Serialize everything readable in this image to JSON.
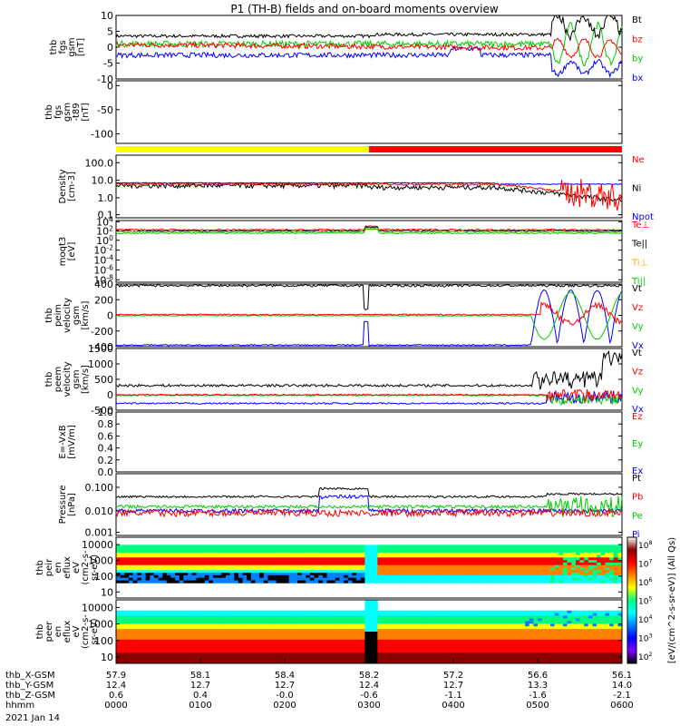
{
  "title": "P1 (TH-B) fields and on-board moments overview",
  "date_label": "2021 Jan 14",
  "colorbar": {
    "label": "[eV/(cm^2-s-sr-eV)] (All Qs)",
    "ticks": [
      "10^8",
      "10^7",
      "10^6",
      "10^5",
      "10^4",
      "10^3",
      "10^2"
    ],
    "colors": [
      "#ffffff",
      "#8b0000",
      "#ff0000",
      "#ff7f00",
      "#ffff00",
      "#00ff7f",
      "#00ffff",
      "#007fff",
      "#0000ff",
      "#7f00ff",
      "#000000"
    ]
  },
  "chart_data": [
    {
      "type": "line",
      "panel": "fgs-gsm",
      "ylabel": [
        "thb",
        "fgs",
        "gsm",
        "[nT]"
      ],
      "ylim": [
        -10,
        10
      ],
      "ticks": [
        "10",
        "5",
        "0",
        "-5",
        "-10"
      ],
      "series": [
        {
          "name": "Bt",
          "color": "#000000"
        },
        {
          "name": "bz",
          "color": "#ff0000"
        },
        {
          "name": "by",
          "color": "#00cc00"
        },
        {
          "name": "bx",
          "color": "#0000ff"
        }
      ]
    },
    {
      "type": "line",
      "panel": "fgs-gsm-t89",
      "ylabel": [
        "thb",
        "fgs",
        "gsm",
        "-t89",
        "[nT]"
      ],
      "ylim": [
        -120,
        10
      ],
      "ticks": [
        "0",
        "-50",
        "-100"
      ],
      "series": []
    },
    {
      "type": "bar",
      "panel": "mode-bar",
      "segments": [
        {
          "from": 0.0,
          "to": 0.5,
          "color": "#ffff00"
        },
        {
          "from": 0.5,
          "to": 1.0,
          "color": "#ff0000"
        }
      ]
    },
    {
      "type": "line",
      "panel": "density",
      "ylabel": [
        "Density",
        "[cm-3]"
      ],
      "scale": "log",
      "ticks": [
        "100.0",
        "10.0",
        "1.0",
        "0.1"
      ],
      "series": [
        {
          "name": "Ne",
          "color": "#ff0000"
        },
        {
          "name": "Ni",
          "color": "#000000"
        },
        {
          "name": "Npot",
          "color": "#0000ff"
        }
      ]
    },
    {
      "type": "line",
      "panel": "temperature",
      "ylabel": [
        "moqt3",
        "[eV]"
      ],
      "scale": "log",
      "ticks": [
        "10^4",
        "10^2",
        "10^0",
        "10^-2",
        "10^-4",
        "10^-6",
        "10^-8"
      ],
      "series": [
        {
          "name": "Te⊥",
          "color": "#ff0000"
        },
        {
          "name": "Te||",
          "color": "#000000"
        },
        {
          "name": "Ti⊥",
          "color": "#ffaa00"
        },
        {
          "name": "Ti||",
          "color": "#00cc00"
        }
      ]
    },
    {
      "type": "line",
      "panel": "peim-velocity",
      "ylabel": [
        "thb",
        "peim",
        "velocity",
        "gsm",
        "[km/s]"
      ],
      "ylim": [
        -400,
        400
      ],
      "ticks": [
        "400",
        "200",
        "0",
        "-200",
        "-400"
      ],
      "series": [
        {
          "name": "Vt",
          "color": "#000000"
        },
        {
          "name": "Vz",
          "color": "#ff0000"
        },
        {
          "name": "Vy",
          "color": "#00cc00"
        },
        {
          "name": "Vx",
          "color": "#0000ff"
        }
      ]
    },
    {
      "type": "line",
      "panel": "peem-velocity",
      "ylabel": [
        "thb",
        "peem",
        "velocity",
        "gsm",
        "[km/s]"
      ],
      "ylim": [
        -500,
        1500
      ],
      "ticks": [
        "1500",
        "1000",
        "500",
        "0",
        "-500"
      ],
      "series": [
        {
          "name": "Vt",
          "color": "#000000"
        },
        {
          "name": "Vz",
          "color": "#ff0000"
        },
        {
          "name": "Vy",
          "color": "#00cc00"
        },
        {
          "name": "Vx",
          "color": "#0000ff"
        }
      ]
    },
    {
      "type": "line",
      "panel": "efield",
      "ylabel": [
        "E=-VxB",
        "[mV/m]"
      ],
      "ylim": [
        0,
        1
      ],
      "ticks": [
        "1.0",
        "0.8",
        "0.6",
        "0.4",
        "0.2",
        "0.0"
      ],
      "series": [
        {
          "name": "Ez",
          "color": "#ff0000"
        },
        {
          "name": "Ey",
          "color": "#00cc00"
        },
        {
          "name": "Ex",
          "color": "#0000ff"
        }
      ]
    },
    {
      "type": "line",
      "panel": "pressure",
      "ylabel": [
        "Pressure",
        "[nPa]"
      ],
      "scale": "log",
      "ticks": [
        "0.100",
        "0.010",
        "0.001"
      ],
      "series": [
        {
          "name": "Pt",
          "color": "#000000"
        },
        {
          "name": "Pb",
          "color": "#ff0000"
        },
        {
          "name": "Pe",
          "color": "#00cc00"
        },
        {
          "name": "Pi",
          "color": "#0000ff"
        }
      ]
    },
    {
      "type": "heatmap",
      "panel": "peir-spectrogram",
      "ylabel": [
        "thb",
        "peir",
        "en",
        "eflux",
        "eV",
        "(cm2-s-",
        "sr-eV)"
      ],
      "scale": "log",
      "ticks": [
        "10000",
        "1000",
        "100",
        "10"
      ]
    },
    {
      "type": "heatmap",
      "panel": "peer-spectrogram",
      "ylabel": [
        "thb",
        "peer",
        "en",
        "eflux",
        "eV",
        "(cm2-s-",
        "sr-eV)"
      ],
      "scale": "log",
      "ticks": [
        "10000",
        "1000",
        "100",
        "10"
      ]
    }
  ],
  "xaxis": {
    "rows": [
      {
        "label": "thb_X-GSM",
        "values": [
          "57.9",
          "58.1",
          "58.4",
          "58.2",
          "57.2",
          "56.6",
          "56.1"
        ]
      },
      {
        "label": "thb_Y-GSM",
        "values": [
          "12.4",
          "12.7",
          "12.7",
          "12.4",
          "12.7",
          "13.3",
          "14.0"
        ]
      },
      {
        "label": "thb_Z-GSM",
        "values": [
          "0.6",
          "0.4",
          "-0.0",
          "-0.6",
          "-1.1",
          "-1.6",
          "-2.1"
        ]
      },
      {
        "label": "hhmm",
        "values": [
          "0000",
          "0100",
          "0200",
          "0300",
          "0400",
          "0500",
          "0600"
        ]
      }
    ]
  }
}
